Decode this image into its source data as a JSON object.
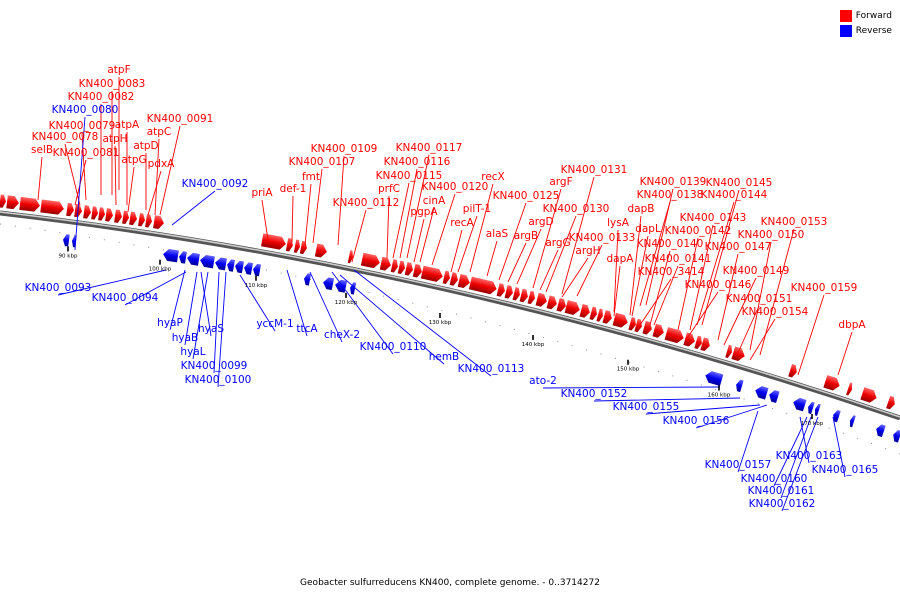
{
  "legend": {
    "forward_label": "Forward",
    "reverse_label": "Reverse",
    "forward_color": "#ff0000",
    "reverse_color": "#0000ff"
  },
  "caption": "Geobacter sulfurreducens KN400, complete genome. - 0..3714272",
  "ticks": [
    "90 kbp",
    "100 kbp",
    "110 kbp",
    "120 kbp",
    "130 kbp",
    "140 kbp",
    "150 kbp",
    "160 kbp",
    "170 kbp"
  ],
  "forward_labels": [
    "atpF",
    "KN400_0083",
    "KN400_0082",
    "KN400_0079",
    "atpA",
    "KN400_0091",
    "atpC",
    "KN400_0078",
    "atpH",
    "selB",
    "KN400_0081",
    "atpD",
    "atpG",
    "pdxA",
    "KN400_0109",
    "KN400_0117",
    "KN400_0107",
    "KN400_0116",
    "fmt",
    "KN400_0115",
    "def-1",
    "prfC",
    "KN400_0120",
    "cinA",
    "pgpA",
    "KN400_0112",
    "recX",
    "priA",
    "pilT-1",
    "recA",
    "alaS",
    "KN400_0125",
    "argB",
    "argD",
    "argF",
    "argG",
    "KN400_0130",
    "KN400_0131",
    "KN400_0133",
    "argH",
    "KN400_0139",
    "KN400_0145",
    "KN400_0138",
    "KN400_0144",
    "dapB",
    "lysA",
    "dapL",
    "KN400_0143",
    "KN400_0142",
    "KN400_0140",
    "KN400_0153",
    "KN400_0150",
    "dapA",
    "KN400_0141",
    "KN400_0147",
    "KN400_3414",
    "KN400_0149",
    "KN400_0146",
    "KN400_0151",
    "KN400_0154",
    "KN400_0159",
    "dbpA"
  ],
  "reverse_labels": [
    "KN400_0080",
    "KN400_0092",
    "KN400_0093",
    "KN400_0094",
    "hyaP",
    "hyaS",
    "hyaB",
    "hyaL",
    "KN400_0099",
    "KN400_0100",
    "yccM-1",
    "ttcA",
    "cheX-2",
    "KN400_0110",
    "hemB",
    "KN400_0113",
    "ato-2",
    "KN400_0152",
    "KN400_0155",
    "KN400_0156",
    "KN400_0157",
    "KN400_0163",
    "KN400_0165",
    "KN400_0160",
    "KN400_0161",
    "KN400_0162"
  ]
}
